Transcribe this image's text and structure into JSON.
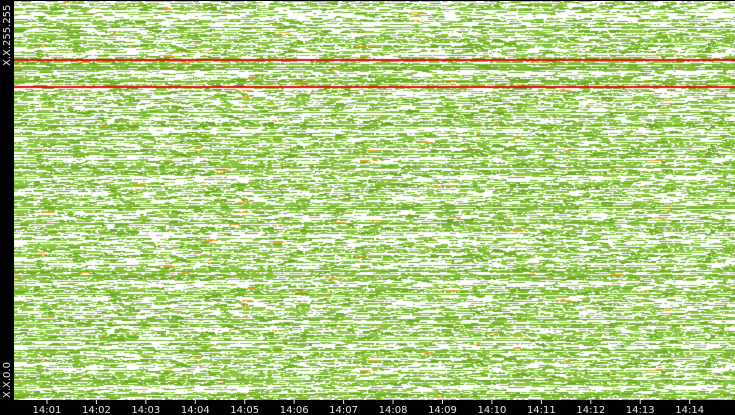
{
  "chart_data": {
    "type": "heatmap",
    "title": "",
    "xlabel": "",
    "ylabel": "",
    "x_ticks": [
      "14:01",
      "14:02",
      "14:03",
      "14:04",
      "14:05",
      "14:06",
      "14:07",
      "14:08",
      "14:09",
      "14:10",
      "14:11",
      "14:12",
      "14:13",
      "14:14"
    ],
    "x_range": [
      "14:00:20",
      "14:14:55"
    ],
    "y_labels": [
      "X.X.255.255",
      "X.X.0.0"
    ],
    "background_color": "#000000",
    "grid": false,
    "legend": "none",
    "colors": {
      "empty": "#ffffff",
      "low": "#8cc63f",
      "mid": "#6aa820",
      "high": "#f0a020",
      "max": "#e01010"
    },
    "hot_rows": [
      {
        "y_fraction": 0.145,
        "level": "max"
      },
      {
        "y_fraction": 0.213,
        "level": "max"
      }
    ]
  }
}
